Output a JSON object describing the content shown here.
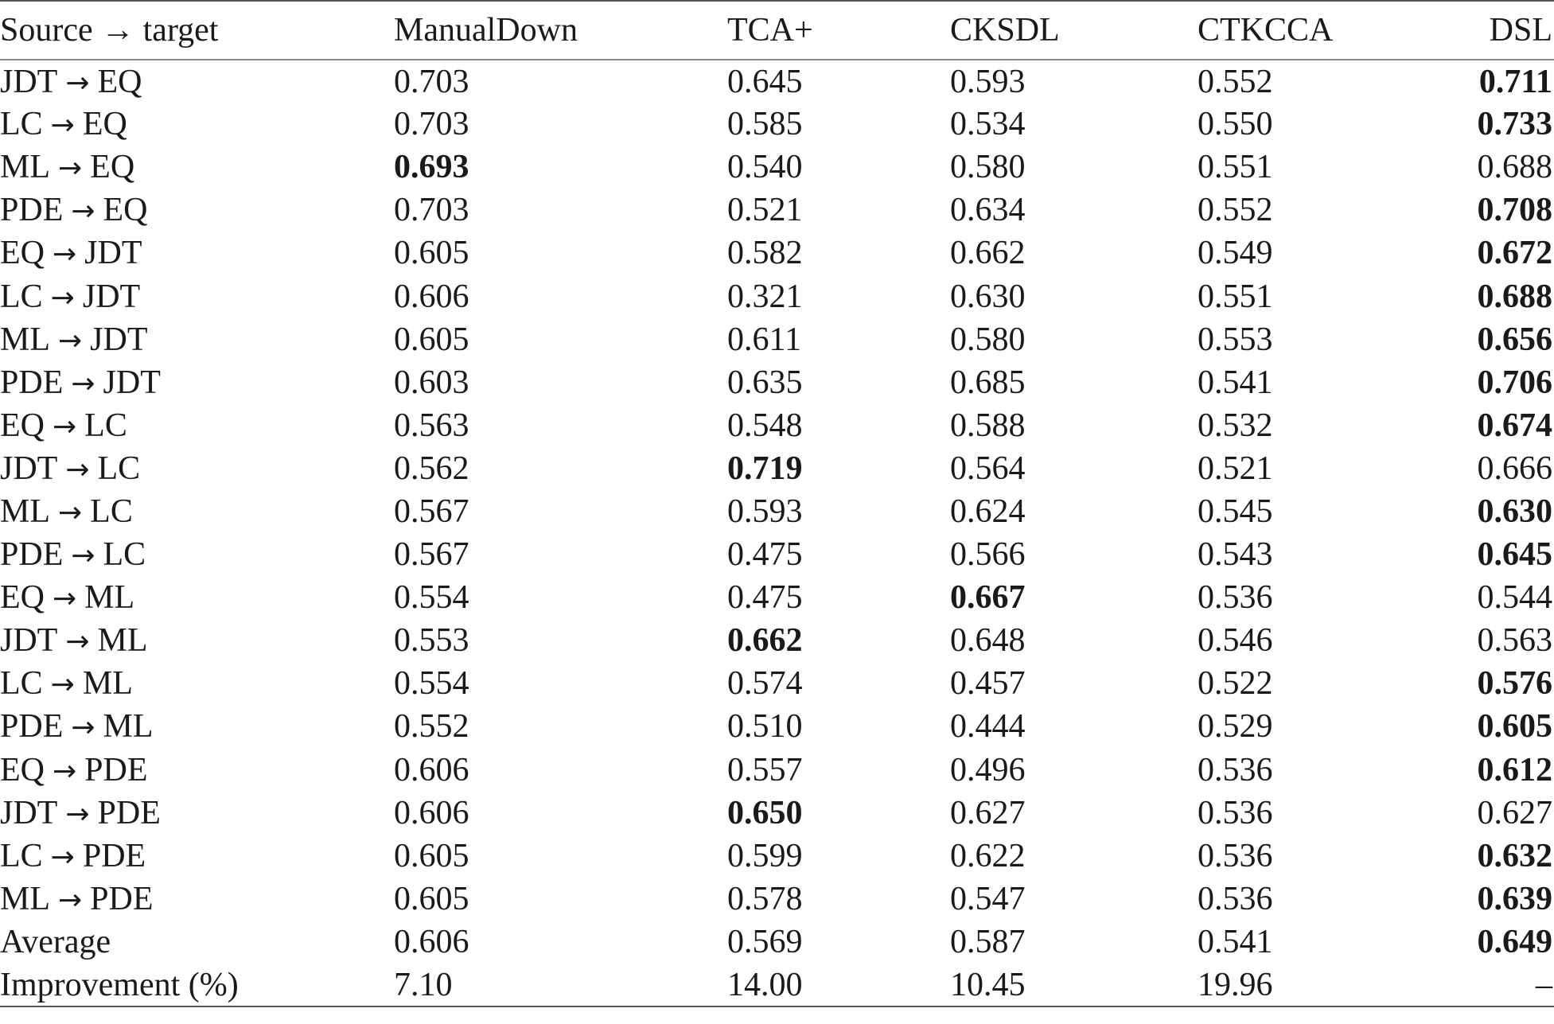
{
  "table": {
    "headers": [
      "Source → target",
      "ManualDown",
      "TCA+",
      "CKSDL",
      "CTKCCA",
      "DSL"
    ],
    "rows": [
      {
        "label": [
          "JDT",
          "EQ"
        ],
        "values": [
          "0.703",
          "0.645",
          "0.593",
          "0.552",
          "0.711"
        ],
        "bold": [
          false,
          false,
          false,
          false,
          true
        ]
      },
      {
        "label": [
          "LC",
          "EQ"
        ],
        "values": [
          "0.703",
          "0.585",
          "0.534",
          "0.550",
          "0.733"
        ],
        "bold": [
          false,
          false,
          false,
          false,
          true
        ]
      },
      {
        "label": [
          "ML",
          "EQ"
        ],
        "values": [
          "0.693",
          "0.540",
          "0.580",
          "0.551",
          "0.688"
        ],
        "bold": [
          true,
          false,
          false,
          false,
          false
        ]
      },
      {
        "label": [
          "PDE",
          "EQ"
        ],
        "values": [
          "0.703",
          "0.521",
          "0.634",
          "0.552",
          "0.708"
        ],
        "bold": [
          false,
          false,
          false,
          false,
          true
        ]
      },
      {
        "label": [
          "EQ",
          "JDT"
        ],
        "values": [
          "0.605",
          "0.582",
          "0.662",
          "0.549",
          "0.672"
        ],
        "bold": [
          false,
          false,
          false,
          false,
          true
        ]
      },
      {
        "label": [
          "LC",
          "JDT"
        ],
        "values": [
          "0.606",
          "0.321",
          "0.630",
          "0.551",
          "0.688"
        ],
        "bold": [
          false,
          false,
          false,
          false,
          true
        ]
      },
      {
        "label": [
          "ML",
          "JDT"
        ],
        "values": [
          "0.605",
          "0.611",
          "0.580",
          "0.553",
          "0.656"
        ],
        "bold": [
          false,
          false,
          false,
          false,
          true
        ]
      },
      {
        "label": [
          "PDE",
          "JDT"
        ],
        "values": [
          "0.603",
          "0.635",
          "0.685",
          "0.541",
          "0.706"
        ],
        "bold": [
          false,
          false,
          false,
          false,
          true
        ]
      },
      {
        "label": [
          "EQ",
          "LC"
        ],
        "values": [
          "0.563",
          "0.548",
          "0.588",
          "0.532",
          "0.674"
        ],
        "bold": [
          false,
          false,
          false,
          false,
          true
        ]
      },
      {
        "label": [
          "JDT",
          "LC"
        ],
        "values": [
          "0.562",
          "0.719",
          "0.564",
          "0.521",
          "0.666"
        ],
        "bold": [
          false,
          true,
          false,
          false,
          false
        ]
      },
      {
        "label": [
          "ML",
          "LC"
        ],
        "values": [
          "0.567",
          "0.593",
          "0.624",
          "0.545",
          "0.630"
        ],
        "bold": [
          false,
          false,
          false,
          false,
          true
        ]
      },
      {
        "label": [
          "PDE",
          "LC"
        ],
        "values": [
          "0.567",
          "0.475",
          "0.566",
          "0.543",
          "0.645"
        ],
        "bold": [
          false,
          false,
          false,
          false,
          true
        ]
      },
      {
        "label": [
          "EQ",
          "ML"
        ],
        "values": [
          "0.554",
          "0.475",
          "0.667",
          "0.536",
          "0.544"
        ],
        "bold": [
          false,
          false,
          true,
          false,
          false
        ]
      },
      {
        "label": [
          "JDT",
          "ML"
        ],
        "values": [
          "0.553",
          "0.662",
          "0.648",
          "0.546",
          "0.563"
        ],
        "bold": [
          false,
          true,
          false,
          false,
          false
        ]
      },
      {
        "label": [
          "LC",
          "ML"
        ],
        "values": [
          "0.554",
          "0.574",
          "0.457",
          "0.522",
          "0.576"
        ],
        "bold": [
          false,
          false,
          false,
          false,
          true
        ]
      },
      {
        "label": [
          "PDE",
          "ML"
        ],
        "values": [
          "0.552",
          "0.510",
          "0.444",
          "0.529",
          "0.605"
        ],
        "bold": [
          false,
          false,
          false,
          false,
          true
        ]
      },
      {
        "label": [
          "EQ",
          "PDE"
        ],
        "values": [
          "0.606",
          "0.557",
          "0.496",
          "0.536",
          "0.612"
        ],
        "bold": [
          false,
          false,
          false,
          false,
          true
        ]
      },
      {
        "label": [
          "JDT",
          "PDE"
        ],
        "values": [
          "0.606",
          "0.650",
          "0.627",
          "0.536",
          "0.627"
        ],
        "bold": [
          false,
          true,
          false,
          false,
          false
        ]
      },
      {
        "label": [
          "LC",
          "PDE"
        ],
        "values": [
          "0.605",
          "0.599",
          "0.622",
          "0.536",
          "0.632"
        ],
        "bold": [
          false,
          false,
          false,
          false,
          true
        ]
      },
      {
        "label": [
          "ML",
          "PDE"
        ],
        "values": [
          "0.605",
          "0.578",
          "0.547",
          "0.536",
          "0.639"
        ],
        "bold": [
          false,
          false,
          false,
          false,
          true
        ]
      },
      {
        "label": [
          "Average"
        ],
        "values": [
          "0.606",
          "0.569",
          "0.587",
          "0.541",
          "0.649"
        ],
        "bold": [
          false,
          false,
          false,
          false,
          true
        ]
      },
      {
        "label": [
          "Improvement (%)"
        ],
        "values": [
          "7.10",
          "14.00",
          "10.45",
          "19.96",
          "–"
        ],
        "bold": [
          false,
          false,
          false,
          false,
          false
        ]
      }
    ]
  }
}
